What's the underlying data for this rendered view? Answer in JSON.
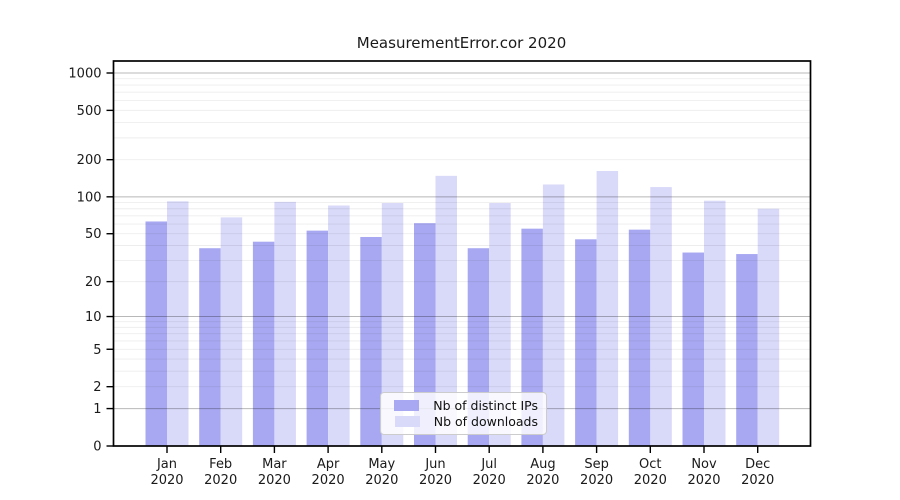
{
  "title": "MeasurementError.cor 2020",
  "chart_data": {
    "type": "bar",
    "title": "MeasurementError.cor 2020",
    "categories": [
      "Jan",
      "Feb",
      "Mar",
      "Apr",
      "May",
      "Jun",
      "Jul",
      "Aug",
      "Sep",
      "Oct",
      "Nov",
      "Dec"
    ],
    "x_tick_second_line": "2020",
    "series": [
      {
        "name": "Nb of distinct IPs",
        "color": "#a8a8f2",
        "values": [
          63,
          38,
          43,
          53,
          47,
          61,
          38,
          55,
          45,
          54,
          35,
          34
        ]
      },
      {
        "name": "Nb of downloads",
        "color": "#d9d9f9",
        "values": [
          92,
          68,
          91,
          85,
          89,
          148,
          89,
          126,
          162,
          120,
          93,
          80
        ]
      }
    ],
    "ylabel": "",
    "xlabel": "",
    "y_ticks": [
      0,
      1,
      2,
      5,
      10,
      20,
      50,
      100,
      200,
      500,
      1000
    ],
    "ylim": [
      0,
      1100
    ],
    "scale": "log1p",
    "grid": true,
    "legend_position": "bottom-center",
    "axis_color": "#000000",
    "tick_label_color": "#1a1a1a"
  }
}
